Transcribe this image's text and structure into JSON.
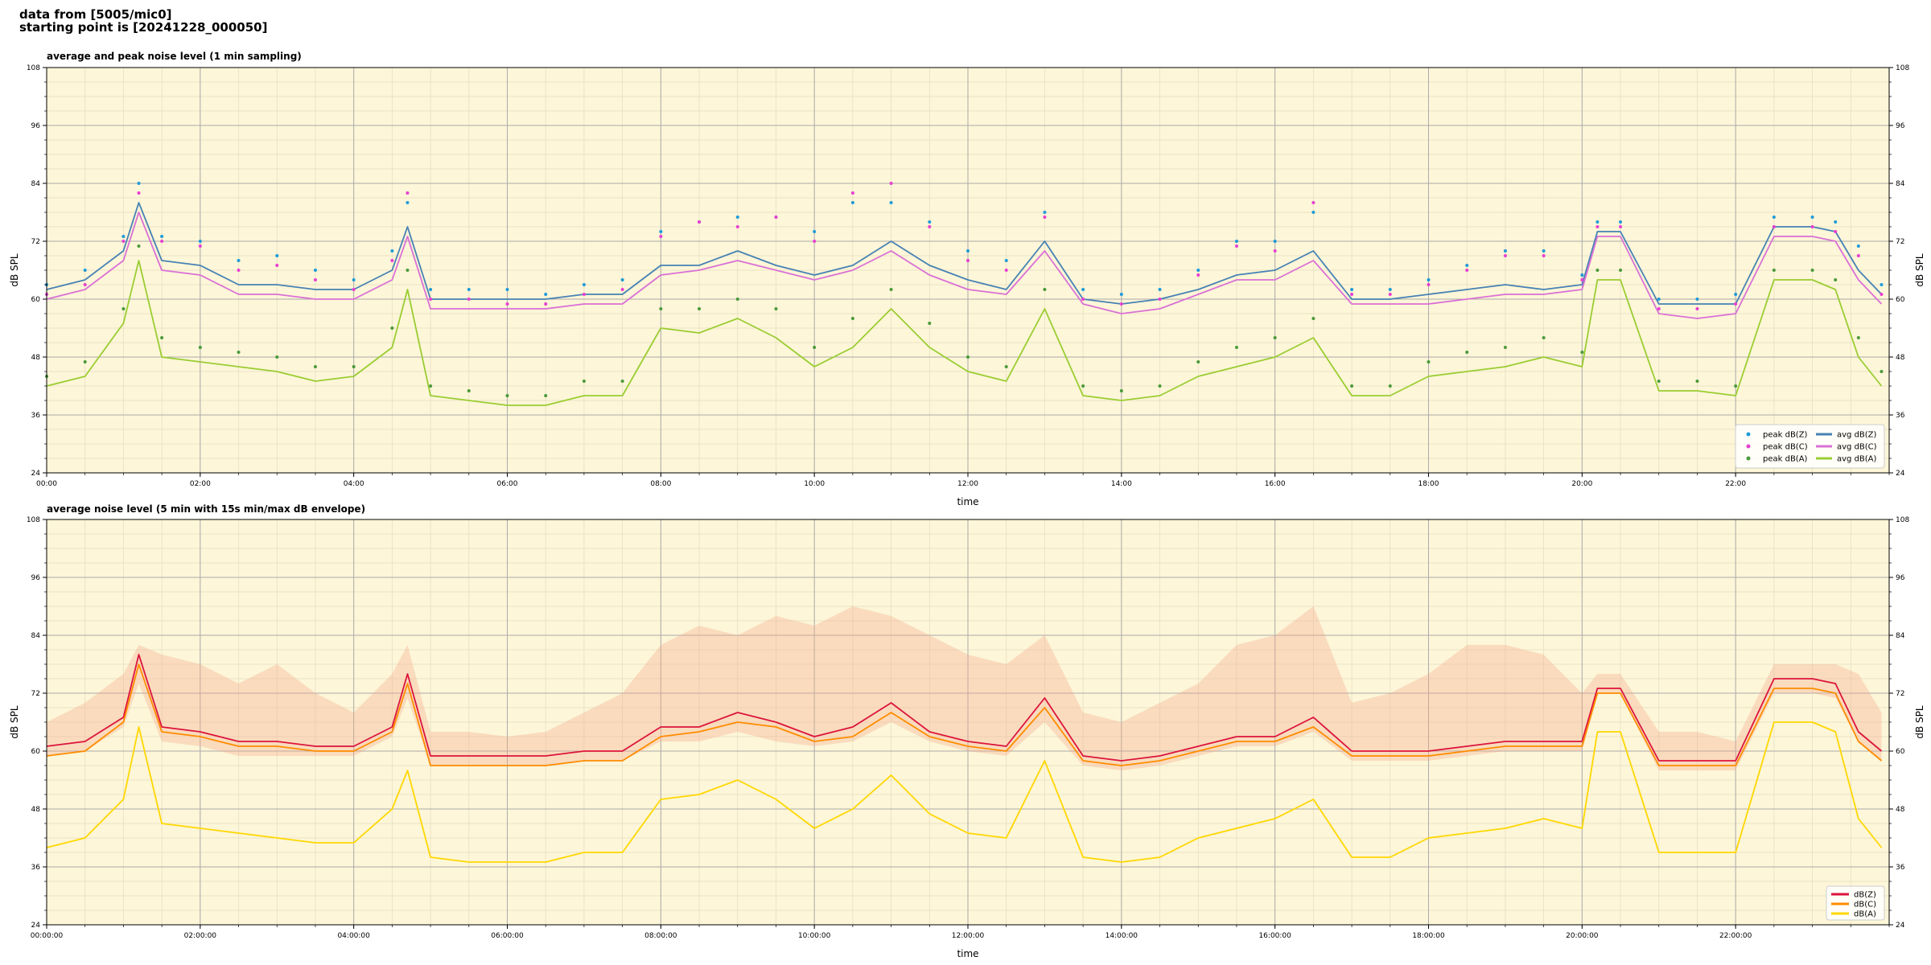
{
  "header": {
    "line1": "data from [5005/mic0]",
    "line2": "starting point is [20241228_000050]"
  },
  "colors": {
    "plot_bg": "#fdf6d8",
    "peak_z": "#1f9bd8",
    "peak_c": "#e83fd2",
    "peak_a": "#4a9a3a",
    "avg_z": "#4682b4",
    "avg_c": "#da70d6",
    "avg_a": "#9acd32",
    "dbz": "#dc143c",
    "dbc": "#ff8c00",
    "dba": "#ffd700",
    "envelope": "#f4a98c"
  },
  "chart_data": [
    {
      "type": "line",
      "title": "average and peak noise level (1 min sampling)",
      "xlabel": "time",
      "ylabel": "dB SPL",
      "ylim": [
        24,
        108
      ],
      "xlim_hours": [
        0,
        24
      ],
      "yticks": [
        "24",
        "36",
        "48",
        "60",
        "72",
        "84",
        "96",
        "108"
      ],
      "xtick_labels": [
        "00:00",
        "02:00",
        "04:00",
        "06:00",
        "08:00",
        "10:00",
        "12:00",
        "14:00",
        "16:00",
        "18:00",
        "20:00",
        "22:00"
      ],
      "grid": true,
      "legend_position": "lower-right",
      "legend": [
        {
          "label": "peak dB(Z)",
          "kind": "marker",
          "key": "peak_z"
        },
        {
          "label": "peak dB(C)",
          "kind": "marker",
          "key": "peak_c"
        },
        {
          "label": "peak dB(A)",
          "kind": "marker",
          "key": "peak_a"
        },
        {
          "label": "avg dB(Z)",
          "kind": "line",
          "key": "avg_z"
        },
        {
          "label": "avg dB(C)",
          "kind": "line",
          "key": "avg_c"
        },
        {
          "label": "avg dB(A)",
          "kind": "line",
          "key": "avg_a"
        }
      ],
      "x_hours": [
        0,
        0.5,
        1,
        1.2,
        1.5,
        2,
        2.5,
        3,
        3.5,
        4,
        4.5,
        4.7,
        5,
        5.5,
        6,
        6.5,
        7,
        7.5,
        8,
        8.5,
        9,
        9.5,
        10,
        10.5,
        11,
        11.5,
        12,
        12.5,
        13,
        13.5,
        14,
        14.5,
        15,
        15.5,
        16,
        16.5,
        17,
        17.5,
        18,
        18.5,
        19,
        19.5,
        20,
        20.2,
        20.5,
        21,
        21.5,
        22,
        22.5,
        23,
        23.3,
        23.6,
        23.9
      ],
      "series": [
        {
          "name": "avg dB(Z)",
          "key": "avg_z",
          "values": [
            62,
            64,
            70,
            80,
            68,
            67,
            63,
            63,
            62,
            62,
            66,
            75,
            60,
            60,
            60,
            60,
            61,
            61,
            67,
            67,
            70,
            67,
            65,
            67,
            72,
            67,
            64,
            62,
            72,
            60,
            59,
            60,
            62,
            65,
            66,
            70,
            60,
            60,
            61,
            62,
            63,
            62,
            63,
            74,
            74,
            59,
            59,
            59,
            75,
            75,
            74,
            66,
            61
          ]
        },
        {
          "name": "avg dB(C)",
          "key": "avg_c",
          "values": [
            60,
            62,
            68,
            78,
            66,
            65,
            61,
            61,
            60,
            60,
            64,
            73,
            58,
            58,
            58,
            58,
            59,
            59,
            65,
            66,
            68,
            66,
            64,
            66,
            70,
            65,
            62,
            61,
            70,
            59,
            57,
            58,
            61,
            64,
            64,
            68,
            59,
            59,
            59,
            60,
            61,
            61,
            62,
            73,
            73,
            57,
            56,
            57,
            73,
            73,
            72,
            64,
            59
          ]
        },
        {
          "name": "avg dB(A)",
          "key": "avg_a",
          "values": [
            42,
            44,
            55,
            68,
            48,
            47,
            46,
            45,
            43,
            44,
            50,
            62,
            40,
            39,
            38,
            38,
            40,
            40,
            54,
            53,
            56,
            52,
            46,
            50,
            58,
            50,
            45,
            43,
            58,
            40,
            39,
            40,
            44,
            46,
            48,
            52,
            40,
            40,
            44,
            45,
            46,
            48,
            46,
            64,
            64,
            41,
            41,
            40,
            64,
            64,
            62,
            48,
            42
          ]
        },
        {
          "name": "peak dB(Z)",
          "key": "peak_z",
          "values": [
            63,
            66,
            73,
            84,
            73,
            72,
            68,
            69,
            66,
            64,
            70,
            80,
            62,
            62,
            62,
            61,
            63,
            64,
            74,
            76,
            77,
            77,
            74,
            80,
            80,
            76,
            70,
            68,
            78,
            62,
            61,
            62,
            66,
            72,
            72,
            78,
            62,
            62,
            64,
            67,
            70,
            70,
            65,
            76,
            76,
            60,
            60,
            61,
            77,
            77,
            76,
            71,
            63
          ]
        },
        {
          "name": "peak dB(C)",
          "key": "peak_c",
          "values": [
            61,
            63,
            72,
            82,
            72,
            71,
            66,
            67,
            64,
            62,
            68,
            82,
            60,
            60,
            59,
            59,
            61,
            62,
            73,
            76,
            75,
            77,
            72,
            82,
            84,
            75,
            68,
            66,
            77,
            60,
            59,
            60,
            65,
            71,
            70,
            80,
            61,
            61,
            63,
            66,
            69,
            69,
            64,
            75,
            75,
            58,
            58,
            59,
            75,
            75,
            74,
            69,
            61
          ]
        },
        {
          "name": "peak dB(A)",
          "key": "peak_a",
          "values": [
            44,
            47,
            58,
            71,
            52,
            50,
            49,
            48,
            46,
            46,
            54,
            66,
            42,
            41,
            40,
            40,
            43,
            43,
            58,
            58,
            60,
            58,
            50,
            56,
            62,
            55,
            48,
            46,
            62,
            42,
            41,
            42,
            47,
            50,
            52,
            56,
            42,
            42,
            47,
            49,
            50,
            52,
            49,
            66,
            66,
            43,
            43,
            42,
            66,
            66,
            64,
            52,
            45
          ]
        }
      ]
    },
    {
      "type": "line",
      "title": "average noise level (5 min with 15s min/max dB envelope)",
      "xlabel": "time",
      "ylabel": "dB SPL",
      "ylim": [
        24,
        108
      ],
      "xlim_hours": [
        0,
        24
      ],
      "yticks": [
        "24",
        "36",
        "48",
        "60",
        "72",
        "84",
        "96",
        "108"
      ],
      "xtick_labels": [
        "00:00:00",
        "02:00:00",
        "04:00:00",
        "06:00:00",
        "08:00:00",
        "10:00:00",
        "12:00:00",
        "14:00:00",
        "16:00:00",
        "18:00:00",
        "20:00:00",
        "22:00:00"
      ],
      "grid": true,
      "legend_position": "lower-right",
      "legend": [
        {
          "label": "dB(Z)",
          "kind": "line",
          "key": "dbz"
        },
        {
          "label": "dB(C)",
          "kind": "line",
          "key": "dbc"
        },
        {
          "label": "dB(A)",
          "kind": "line",
          "key": "dba"
        }
      ],
      "x_hours": [
        0,
        0.5,
        1,
        1.2,
        1.5,
        2,
        2.5,
        3,
        3.5,
        4,
        4.5,
        4.7,
        5,
        5.5,
        6,
        6.5,
        7,
        7.5,
        8,
        8.5,
        9,
        9.5,
        10,
        10.5,
        11,
        11.5,
        12,
        12.5,
        13,
        13.5,
        14,
        14.5,
        15,
        15.5,
        16,
        16.5,
        17,
        17.5,
        18,
        18.5,
        19,
        19.5,
        20,
        20.2,
        20.5,
        21,
        21.5,
        22,
        22.5,
        23,
        23.3,
        23.6,
        23.9
      ],
      "envelope": {
        "lower": [
          59,
          60,
          65,
          74,
          62,
          61,
          59,
          59,
          59,
          59,
          63,
          71,
          57,
          57,
          57,
          57,
          58,
          58,
          62,
          62,
          64,
          62,
          61,
          62,
          66,
          62,
          60,
          59,
          66,
          57,
          56,
          57,
          59,
          61,
          61,
          64,
          58,
          58,
          58,
          59,
          60,
          60,
          60,
          72,
          72,
          56,
          56,
          56,
          72,
          72,
          71,
          62,
          58
        ],
        "upper": [
          66,
          70,
          76,
          82,
          80,
          78,
          74,
          78,
          72,
          68,
          76,
          82,
          64,
          64,
          63,
          64,
          68,
          72,
          82,
          86,
          84,
          88,
          86,
          90,
          88,
          84,
          80,
          78,
          84,
          68,
          66,
          70,
          74,
          82,
          84,
          90,
          70,
          72,
          76,
          82,
          82,
          80,
          72,
          76,
          76,
          64,
          64,
          62,
          78,
          78,
          78,
          76,
          68
        ]
      },
      "series": [
        {
          "name": "dB(Z)",
          "key": "dbz",
          "values": [
            61,
            62,
            67,
            80,
            65,
            64,
            62,
            62,
            61,
            61,
            65,
            76,
            59,
            59,
            59,
            59,
            60,
            60,
            65,
            65,
            68,
            66,
            63,
            65,
            70,
            64,
            62,
            61,
            71,
            59,
            58,
            59,
            61,
            63,
            63,
            67,
            60,
            60,
            60,
            61,
            62,
            62,
            62,
            73,
            73,
            58,
            58,
            58,
            75,
            75,
            74,
            64,
            60
          ]
        },
        {
          "name": "dB(C)",
          "key": "dbc",
          "values": [
            59,
            60,
            66,
            78,
            64,
            63,
            61,
            61,
            60,
            60,
            64,
            74,
            57,
            57,
            57,
            57,
            58,
            58,
            63,
            64,
            66,
            65,
            62,
            63,
            68,
            63,
            61,
            60,
            69,
            58,
            57,
            58,
            60,
            62,
            62,
            65,
            59,
            59,
            59,
            60,
            61,
            61,
            61,
            72,
            72,
            57,
            57,
            57,
            73,
            73,
            72,
            62,
            58
          ]
        },
        {
          "name": "dB(A)",
          "key": "dba",
          "values": [
            40,
            42,
            50,
            65,
            45,
            44,
            43,
            42,
            41,
            41,
            48,
            56,
            38,
            37,
            37,
            37,
            39,
            39,
            50,
            51,
            54,
            50,
            44,
            48,
            55,
            47,
            43,
            42,
            58,
            38,
            37,
            38,
            42,
            44,
            46,
            50,
            38,
            38,
            42,
            43,
            44,
            46,
            44,
            64,
            64,
            39,
            39,
            39,
            66,
            66,
            64,
            46,
            40
          ]
        }
      ]
    }
  ]
}
